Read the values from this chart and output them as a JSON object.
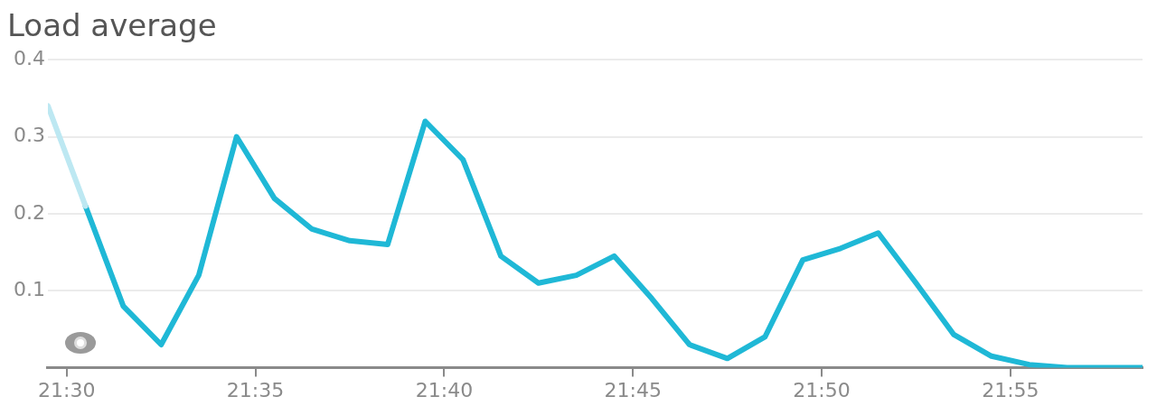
{
  "chart_data": {
    "type": "line",
    "title": "Load average",
    "series": [
      {
        "color": "#bde8f2",
        "x": [
          21.4917,
          21.5083
        ],
        "values": [
          0.34,
          0.21
        ]
      },
      {
        "color": "#1fb8d6",
        "x": [
          21.5083,
          21.525,
          21.5417,
          21.5583,
          21.575,
          21.5917,
          21.6083,
          21.625,
          21.6417,
          21.6583,
          21.675,
          21.6917,
          21.7083,
          21.725,
          21.7417,
          21.7583,
          21.775,
          21.7917,
          21.8083,
          21.825,
          21.8417,
          21.8583,
          21.875,
          21.8917,
          21.9083,
          21.925,
          21.9417,
          21.9583,
          21.975
        ],
        "values": [
          0.21,
          0.08,
          0.03,
          0.12,
          0.3,
          0.22,
          0.18,
          0.165,
          0.16,
          0.32,
          0.27,
          0.145,
          0.11,
          0.12,
          0.145,
          0.09,
          0.03,
          0.012,
          0.04,
          0.14,
          0.155,
          0.175,
          0.11,
          0.043,
          0.015,
          0.004,
          0,
          0,
          0
        ]
      }
    ],
    "xlim": [
      21.4917,
      21.975
    ],
    "xticks": [
      {
        "value": 21.5,
        "label": "21:30"
      },
      {
        "value": 21.5833,
        "label": "21:35"
      },
      {
        "value": 21.6667,
        "label": "21:40"
      },
      {
        "value": 21.75,
        "label": "21:45"
      },
      {
        "value": 21.8333,
        "label": "21:50"
      },
      {
        "value": 21.9167,
        "label": "21:55"
      }
    ],
    "ylim": [
      0,
      0.4
    ],
    "yticks": [
      0.1,
      0.2,
      0.3,
      0.4
    ],
    "grid": "y",
    "legend": false,
    "marker": "none",
    "line_style": "solid"
  }
}
